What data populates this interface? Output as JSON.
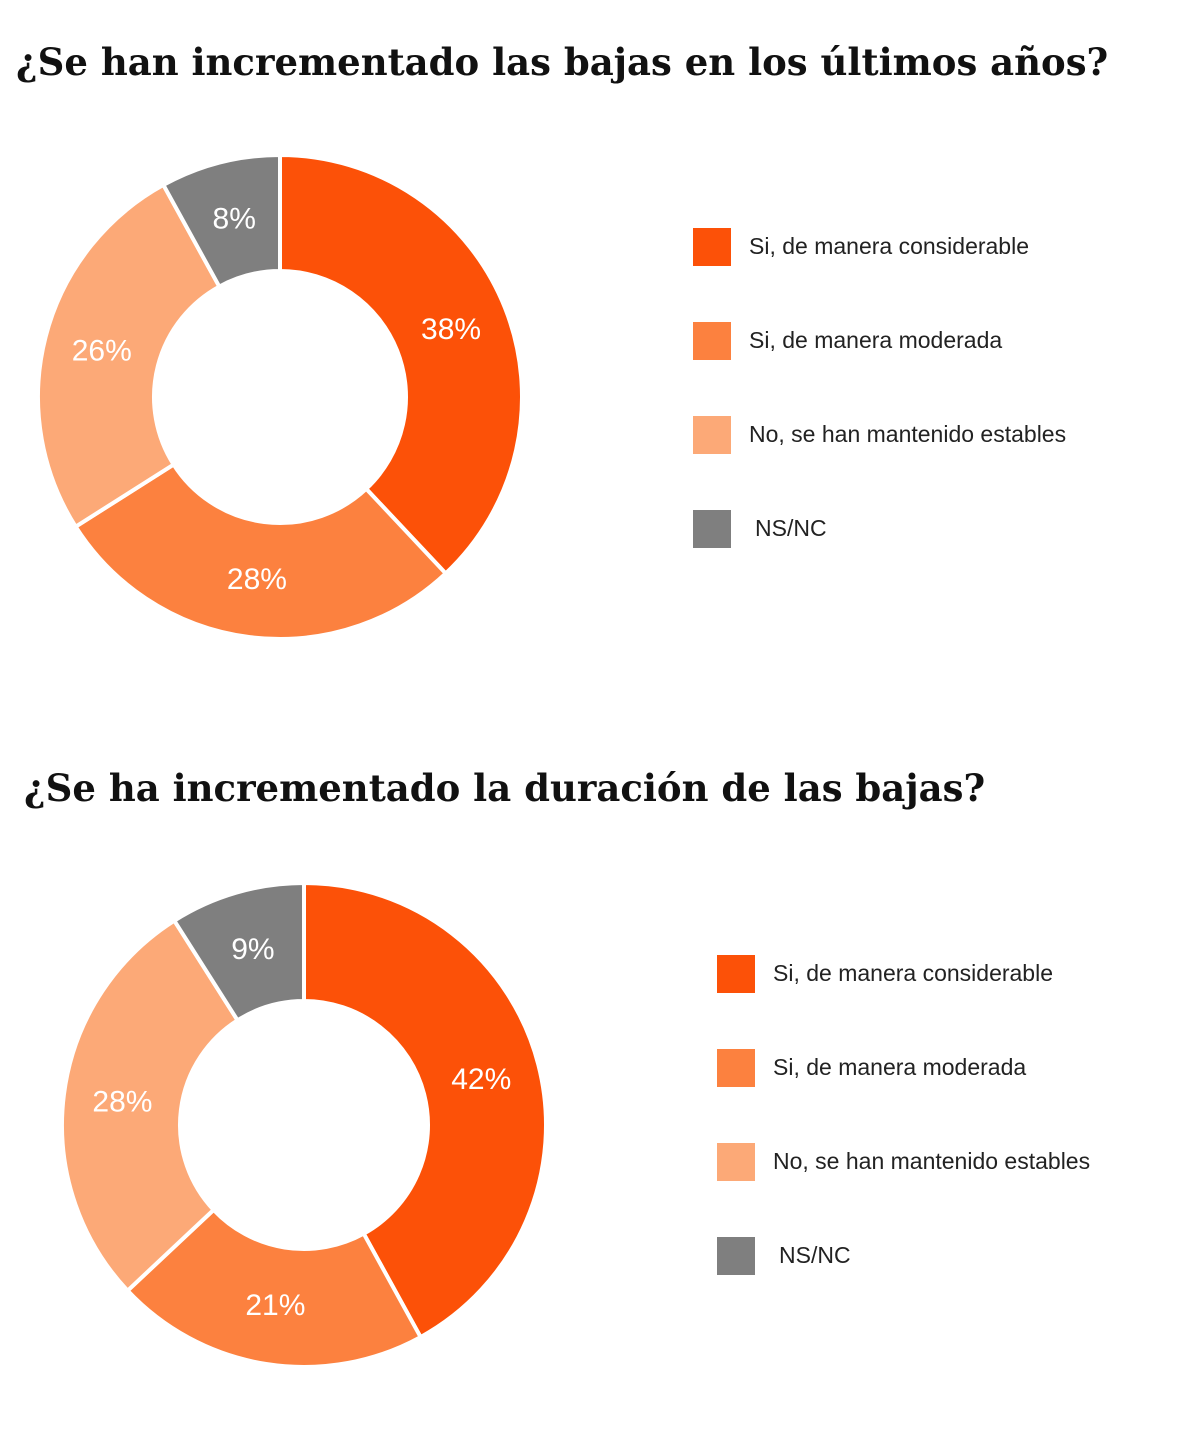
{
  "chart_data": [
    {
      "type": "pie",
      "title": "¿Se han incrementado las bajas en los últimos años?",
      "categories": [
        "Si, de manera considerable",
        "Si, de manera moderada",
        "No, se han mantenido estables",
        "NS/NC"
      ],
      "values": [
        38,
        28,
        26,
        8
      ],
      "value_labels": [
        "38%",
        "28%",
        "26%",
        "8%"
      ],
      "colors": [
        "#fc5108",
        "#fc813f",
        "#fca977",
        "#7f7f7f"
      ],
      "legend_position": "right",
      "donut": true
    },
    {
      "type": "pie",
      "title": "¿Se ha incrementado la duración de las bajas?",
      "categories": [
        "Si, de manera considerable",
        "Si, de manera moderada",
        "No, se han mantenido estables",
        "NS/NC"
      ],
      "values": [
        42,
        21,
        28,
        9
      ],
      "value_labels": [
        "42%",
        "21%",
        "28%",
        "9%"
      ],
      "colors": [
        "#fc5108",
        "#fc813f",
        "#fca977",
        "#7f7f7f"
      ],
      "legend_position": "right",
      "donut": true
    }
  ]
}
